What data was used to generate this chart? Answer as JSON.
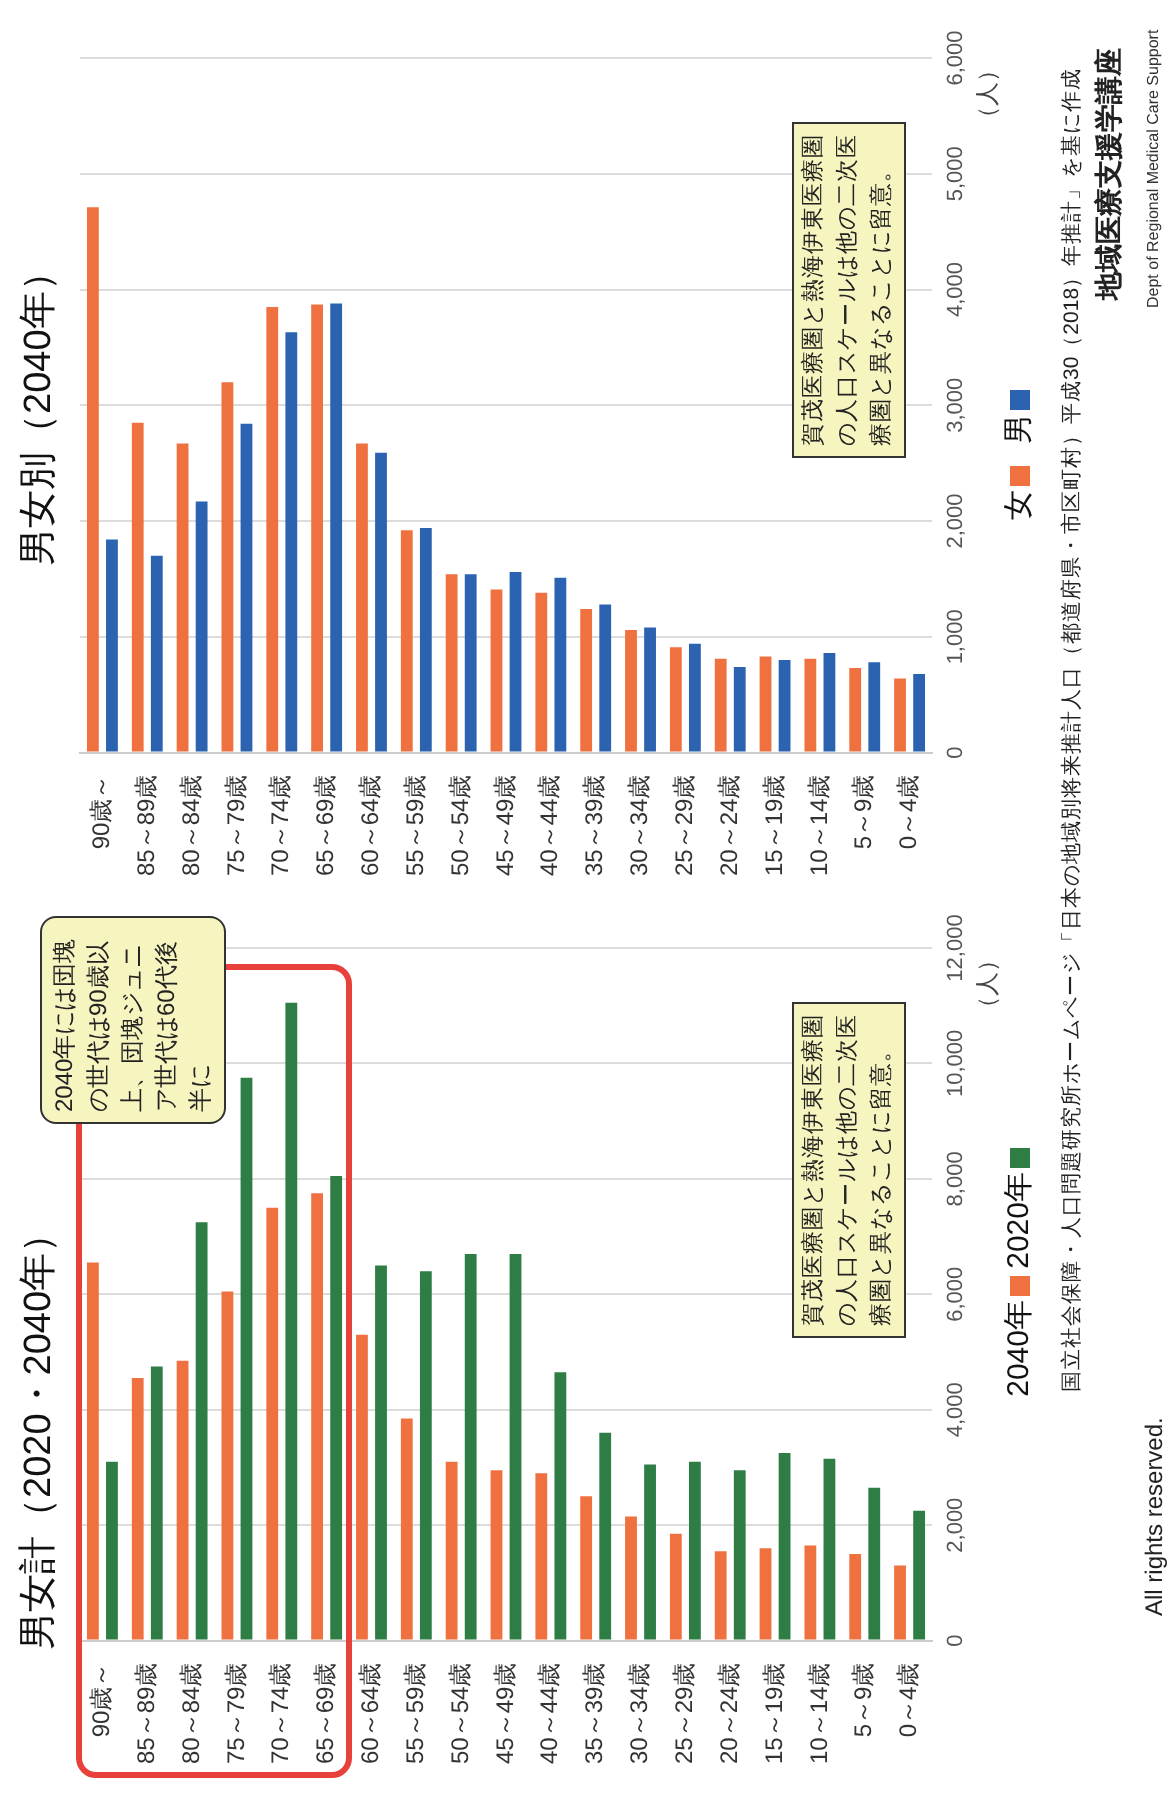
{
  "chart_data": [
    {
      "type": "bar",
      "title": "男女計（2020・2040年）",
      "ylabel": "（人）",
      "categories": [
        "90歳～",
        "85～89歳",
        "80～84歳",
        "75～79歳",
        "70～74歳",
        "65～69歳",
        "60～64歳",
        "55～59歳",
        "50～54歳",
        "45～49歳",
        "40～44歳",
        "35～39歳",
        "30～34歳",
        "25～29歳",
        "20～24歳",
        "15～19歳",
        "10～14歳",
        "5～9歳",
        "0～4歳"
      ],
      "series": [
        {
          "name": "2040年",
          "color": "#f07140",
          "values": [
            6550,
            4550,
            4850,
            6050,
            7500,
            7750,
            5300,
            3850,
            3100,
            2950,
            2900,
            2500,
            2150,
            1850,
            1550,
            1600,
            1650,
            1500,
            1300
          ]
        },
        {
          "name": "2020年",
          "color": "#2e7d45",
          "values": [
            3100,
            4750,
            7250,
            9750,
            11050,
            8050,
            6500,
            6400,
            6700,
            6700,
            4650,
            3600,
            3050,
            3100,
            2950,
            3250,
            3150,
            2650,
            2250
          ]
        }
      ],
      "ylim": [
        0,
        12000
      ],
      "yticks": [
        0,
        {
          "value": 2000,
          "label": "2,000"
        },
        {
          "value": 4000,
          "label": "4,000"
        },
        {
          "value": 6000,
          "label": "6,000"
        },
        {
          "value": 8000,
          "label": "8,000"
        },
        {
          "value": 10000,
          "label": "10,000"
        },
        {
          "value": 12000,
          "label": "12,000"
        }
      ],
      "grid": "y",
      "legend": "right",
      "annotations": [
        "2040年には団塊の世代は90歳以上、団塊ジュニア世代は60代後半に",
        "賀茂医療圏と熱海伊東医療圏の人口スケールは他の二次医療圏と異なることに留意。",
        "国立社会保障・人口問題研究所ホームページ「日本の地域別将来推計人口（都道府県・市区町村）平成30（2018）年推計」を基に作成",
        "All rights reserved."
      ]
    },
    {
      "type": "bar",
      "title": "男女別（2040年）",
      "ylabel": "（人）",
      "categories": [
        "90歳～",
        "85～89歳",
        "80～84歳",
        "75～79歳",
        "70～74歳",
        "65～69歳",
        "60～64歳",
        "55～59歳",
        "50～54歳",
        "45～49歳",
        "40～44歳",
        "35～39歳",
        "30～34歳",
        "25～29歳",
        "20～24歳",
        "15～19歳",
        "10～14歳",
        "5～9歳",
        "0～4歳"
      ],
      "series": [
        {
          "name": "女",
          "color": "#f07140",
          "values": [
            4710,
            2850,
            2670,
            3200,
            3850,
            3870,
            2670,
            1920,
            1540,
            1410,
            1380,
            1240,
            1060,
            910,
            810,
            830,
            810,
            730,
            640
          ]
        },
        {
          "name": "男",
          "color": "#2b63b1",
          "values": [
            1840,
            1700,
            2170,
            2840,
            3630,
            3880,
            2590,
            1940,
            1540,
            1560,
            1510,
            1280,
            1080,
            940,
            740,
            800,
            860,
            780,
            680
          ]
        }
      ],
      "ylim": [
        0,
        6000
      ],
      "yticks": [
        0,
        {
          "value": 1000,
          "label": "1,000"
        },
        {
          "value": 2000,
          "label": "2,000"
        },
        {
          "value": 3000,
          "label": "3,000"
        },
        {
          "value": 4000,
          "label": "4,000"
        },
        {
          "value": 5000,
          "label": "5,000"
        },
        {
          "value": 6000,
          "label": "6,000"
        }
      ],
      "grid": "y",
      "legend": "right",
      "annotations": [
        "賀茂医療圏と熱海伊東医療圏の人口スケールは他の二次医療圏と異なることに留意。",
        "地域医療支援学講座",
        "Dept of Regional Medical Care Support"
      ]
    }
  ]
}
